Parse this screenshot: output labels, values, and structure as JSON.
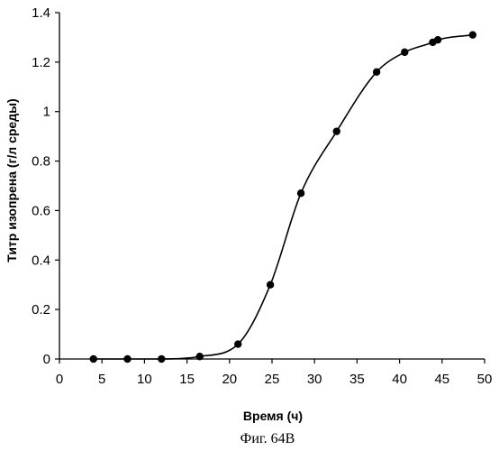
{
  "chart_data": {
    "type": "scatter",
    "title": "",
    "xlabel": "Время (ч)",
    "ylabel": "Титр изопрена (г/л среды)",
    "xlim": [
      0,
      50
    ],
    "ylim": [
      0,
      1.4
    ],
    "xticks": [
      0,
      5,
      10,
      15,
      20,
      25,
      30,
      35,
      40,
      45,
      50
    ],
    "yticks": [
      0,
      0.2,
      0.4,
      0.6,
      0.8,
      1,
      1.2,
      1.4
    ],
    "xtick_labels": [
      "0",
      "5",
      "10",
      "15",
      "20",
      "25",
      "30",
      "35",
      "40",
      "45",
      "50"
    ],
    "ytick_labels": [
      "0",
      "0.2",
      "0.4",
      "0.6",
      "0.8",
      "1",
      "1.2",
      "1.4"
    ],
    "grid": false,
    "legend": "none",
    "series": [
      {
        "style": "markers with smooth line",
        "color": "#000000",
        "x": [
          4,
          8,
          12,
          16.5,
          21,
          24.8,
          28.4,
          32.6,
          37.3,
          40.6,
          43.9,
          44.5,
          48.6
        ],
        "y": [
          0,
          0,
          0,
          0.01,
          0.06,
          0.3,
          0.67,
          0.92,
          1.16,
          1.24,
          1.28,
          1.29,
          1.31
        ]
      }
    ]
  },
  "caption": "Фиг. 64B"
}
